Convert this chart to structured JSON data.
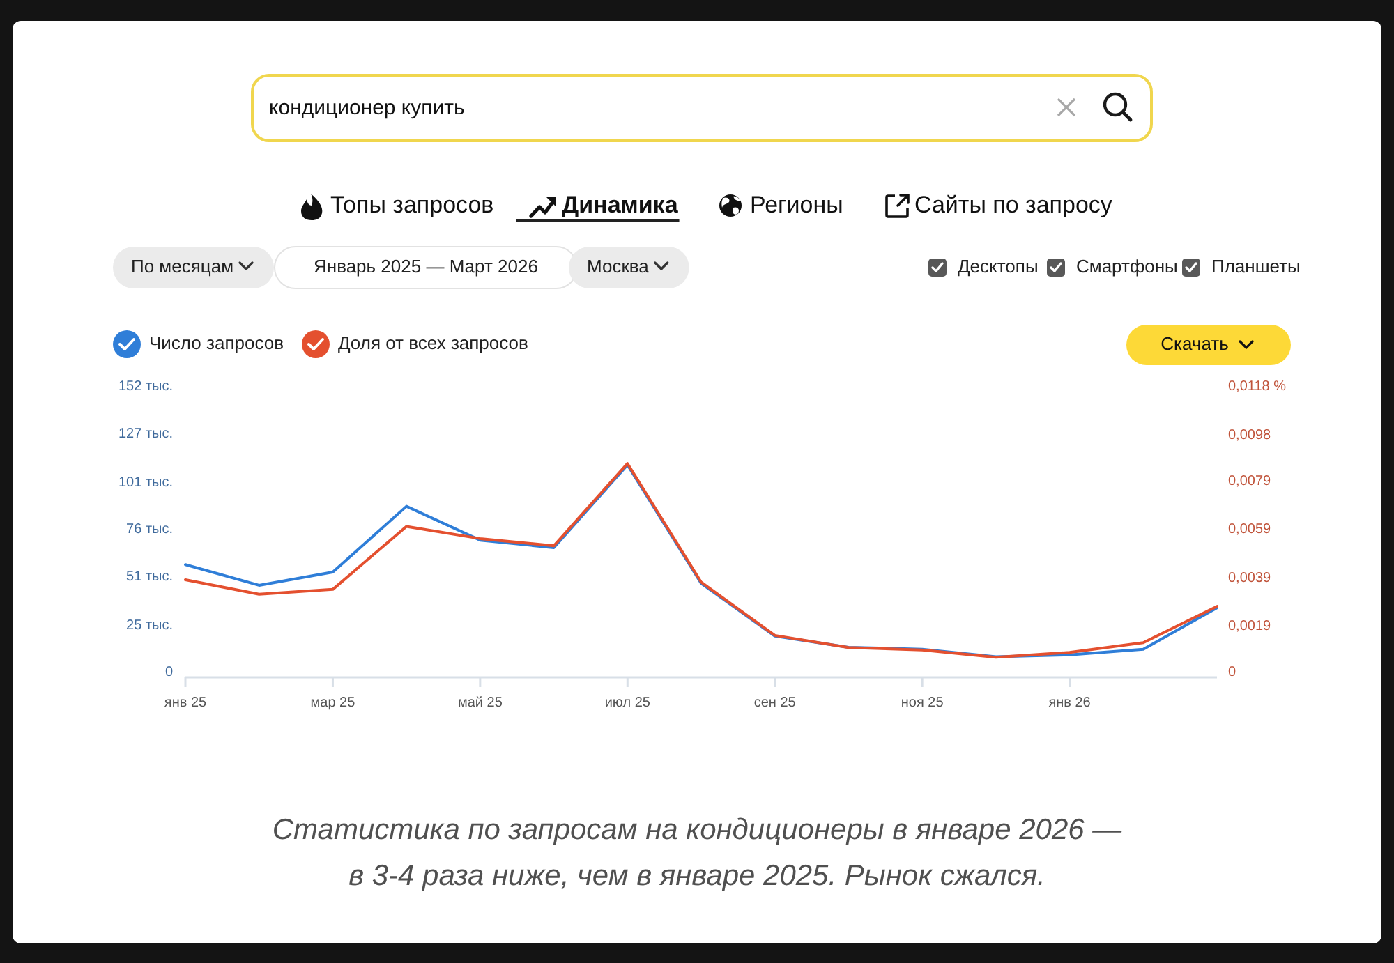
{
  "chart_data": {
    "type": "line",
    "categories": [
      "янв 25",
      null,
      "мар 25",
      null,
      "май 25",
      null,
      "июл 25",
      null,
      "сен 25",
      null,
      "ноя 25",
      null,
      "янв 26",
      null,
      null
    ],
    "series": [
      {
        "name": "Число запросов",
        "color": "#2f7ed8",
        "values": [
          57,
          46,
          53,
          88,
          70,
          66,
          110,
          47,
          19,
          13,
          12,
          8,
          9,
          12,
          34
        ]
      },
      {
        "name": "Доля от всех запросов",
        "color": "#e4502f",
        "axis": "y2",
        "values": [
          0.0038,
          0.0032,
          0.0034,
          0.006,
          0.0055,
          0.0052,
          0.0086,
          0.0037,
          0.0015,
          0.001,
          0.0009,
          0.0006,
          0.0008,
          0.0012,
          0.0027
        ]
      }
    ],
    "ylim": [
      0,
      152
    ],
    "yticks": [
      0,
      {
        "value": 25,
        "label": "25 тыс."
      },
      {
        "value": 51,
        "label": "51 тыс."
      },
      {
        "value": 76,
        "label": "76 тыс."
      },
      {
        "value": 101,
        "label": "101 тыс."
      },
      {
        "value": 127,
        "label": "127 тыс."
      },
      {
        "value": 152,
        "label": "152 тыс."
      }
    ],
    "y2lim": [
      0,
      0.0118
    ],
    "y2ticks": [
      0,
      {
        "value": 0.0019,
        "label": "0,0019"
      },
      {
        "value": 0.0039,
        "label": "0,0039"
      },
      {
        "value": 0.0059,
        "label": "0,0059"
      },
      {
        "value": 0.0079,
        "label": "0,0079"
      },
      {
        "value": 0.0098,
        "label": "0,0098"
      },
      {
        "value": 0.0118,
        "label": "0,0118 %"
      }
    ],
    "legend": "top left",
    "annotations": [
      "кондиционер купить",
      "Топы запросов",
      "Динамика",
      "Регионы",
      "Сайты по запросу",
      "По месяцам",
      "Январь 2025 — Март 2026",
      "Москва",
      "Десктопы",
      "Смартфоны",
      "Планшеты",
      "Скачать",
      "Статистика по запросам на кондиционеры в январе 2026 — в 3-4 раза ниже, чем в январе 2025. Рынок сжался."
    ]
  }
}
